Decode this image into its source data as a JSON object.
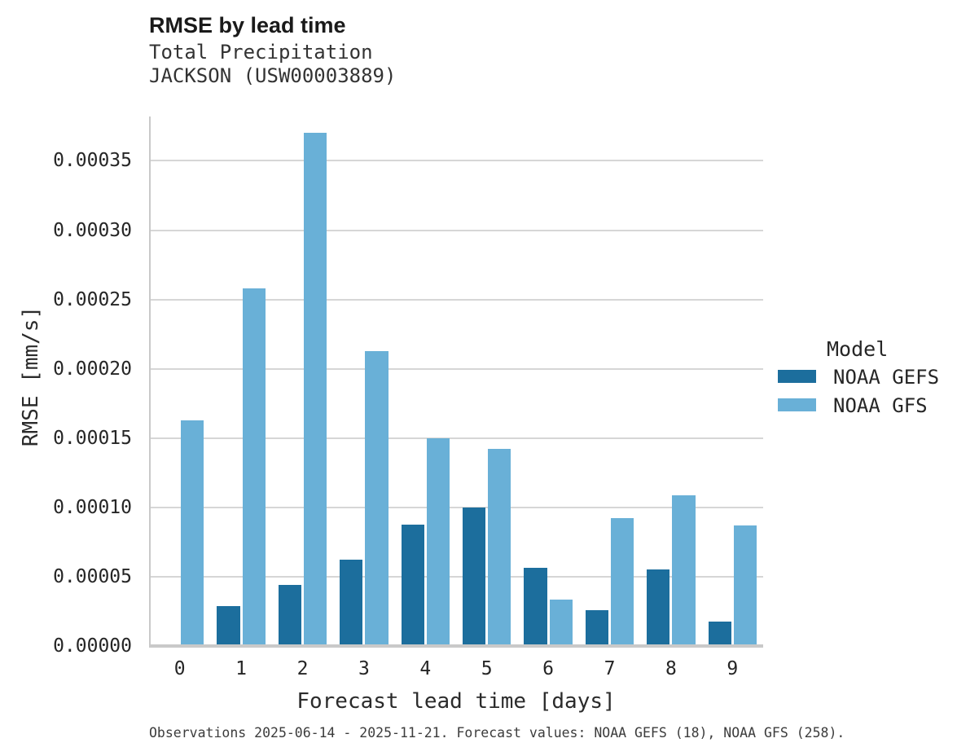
{
  "chart_data": {
    "type": "bar",
    "title": "RMSE by lead time",
    "subtitle_lines": [
      "Total Precipitation",
      "JACKSON (USW00003889)"
    ],
    "xlabel": "Forecast lead time [days]",
    "ylabel": "RMSE [mm/s]",
    "categories": [
      "0",
      "1",
      "2",
      "3",
      "4",
      "5",
      "6",
      "7",
      "8",
      "9"
    ],
    "series": [
      {
        "name": "NOAA GEFS",
        "color": "#1c6e9d",
        "values": [
          null,
          2.9e-05,
          4.4e-05,
          6.25e-05,
          8.75e-05,
          0.0001,
          5.65e-05,
          2.6e-05,
          5.55e-05,
          1.75e-05
        ]
      },
      {
        "name": "NOAA GFS",
        "color": "#69b0d7",
        "values": [
          0.000163,
          0.000258,
          0.00037,
          0.000213,
          0.00015,
          0.000142,
          3.35e-05,
          9.25e-05,
          0.000109,
          8.7e-05
        ]
      }
    ],
    "ylim": [
      0,
      0.000382
    ],
    "yticks": {
      "values": [
        0,
        5e-05,
        0.0001,
        0.00015,
        0.0002,
        0.00025,
        0.0003,
        0.00035
      ],
      "labels": [
        "0.00000",
        "0.00005",
        "0.00010",
        "0.00015",
        "0.00020",
        "0.00025",
        "0.00030",
        "0.00035"
      ]
    },
    "grid": true,
    "legend": {
      "title": "Model",
      "position": "right"
    },
    "caption": "Observations 2025-06-14 - 2025-11-21. Forecast values: NOAA GEFS (18), NOAA GFS (258)."
  },
  "colors": {
    "gridline": "#d6d6d6",
    "spine": "#c9c9c9",
    "noaa_gefs": "#1c6e9d",
    "noaa_gfs": "#69b0d7"
  }
}
